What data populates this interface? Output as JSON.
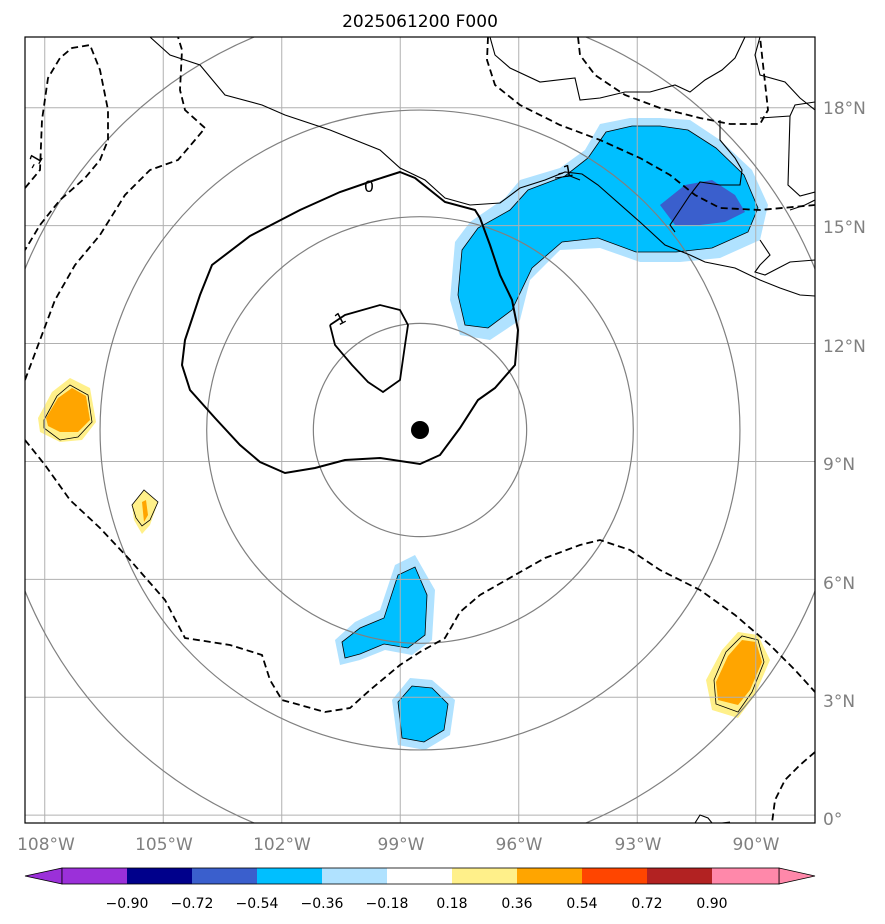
{
  "title": "2025061200 F000",
  "map": {
    "x_ticks": [
      "108°W",
      "105°W",
      "102°W",
      "99°W",
      "96°W",
      "93°W",
      "90°W"
    ],
    "y_ticks": [
      "0°",
      "3°N",
      "6°N",
      "9°N",
      "12°N",
      "15°N",
      "18°N"
    ],
    "lon_values": [
      -108,
      -105,
      -102,
      -99,
      -96,
      -93,
      -90
    ],
    "lat_values": [
      0,
      3,
      6,
      9,
      12,
      15,
      18
    ],
    "extent": {
      "lon": [
        -108.5,
        -88.5
      ],
      "lat": [
        -0.2,
        19.8
      ]
    },
    "center_marker": {
      "lon": -98.5,
      "lat": 9.8
    },
    "range_rings_deg": [
      2.7,
      5.4,
      8.1,
      10.8
    ],
    "contour_labels": [
      "0",
      "1",
      "-1",
      "-1"
    ],
    "colors": {
      "grid": "#b0b0b0",
      "rings": "#808080",
      "coast": "#000000",
      "contour": "#000000"
    }
  },
  "colorbar": {
    "ticks": [
      "−0.90",
      "−0.72",
      "−0.54",
      "−0.36",
      "−0.18",
      "0.18",
      "0.36",
      "0.54",
      "0.72",
      "0.90"
    ],
    "colors": [
      "#9b30d9",
      "#00008b",
      "#3a5fcd",
      "#00bfff",
      "#b0e2ff",
      "#ffffff",
      "#fff08a",
      "#ffa500",
      "#ff4500",
      "#b22222",
      "#ff88aa"
    ]
  }
}
